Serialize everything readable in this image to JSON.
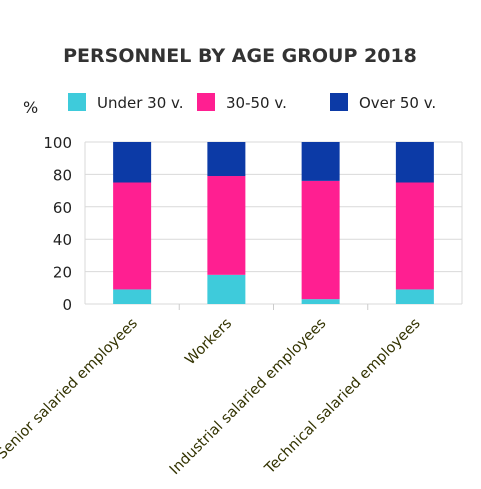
{
  "chart_data": {
    "type": "bar",
    "stacked": true,
    "title": "PERSONNEL BY AGE GROUP 2018",
    "y_unit": "%",
    "ylim": [
      0,
      100
    ],
    "yticks": [
      0,
      20,
      40,
      60,
      80,
      100
    ],
    "grid": true,
    "legend_position": "top",
    "categories": [
      "Senior salaried employees",
      "Workers",
      "Industrial salaried employees",
      "Technical salaried employees"
    ],
    "series": [
      {
        "name": "Under 30 v.",
        "color": "#3ecbdb",
        "values": [
          9,
          18,
          3,
          9
        ]
      },
      {
        "name": "30-50 v.",
        "color": "#ff1f91",
        "values": [
          66,
          61,
          73,
          66
        ]
      },
      {
        "name": "Over 50 v.",
        "color": "#0c3aa6",
        "values": [
          25,
          21,
          24,
          25
        ]
      }
    ]
  }
}
